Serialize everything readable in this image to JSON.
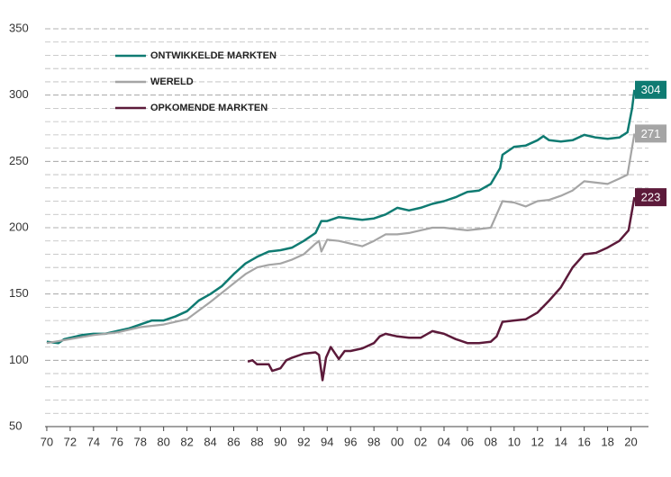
{
  "chart_data": {
    "type": "line",
    "xlim": [
      1969.85,
      2021.5
    ],
    "ylim": [
      50,
      350
    ],
    "yticks": [
      50,
      100,
      150,
      200,
      250,
      300,
      350
    ],
    "minor_yticks": [
      60,
      70,
      80,
      90,
      110,
      120,
      130,
      140,
      160,
      170,
      180,
      190,
      210,
      220,
      230,
      240,
      260,
      270,
      280,
      290,
      310,
      320,
      330,
      340
    ],
    "xticks": [
      {
        "value": 1970,
        "label": "70"
      },
      {
        "value": 1972,
        "label": "72"
      },
      {
        "value": 1974,
        "label": "74"
      },
      {
        "value": 1976,
        "label": "76"
      },
      {
        "value": 1978,
        "label": "78"
      },
      {
        "value": 1980,
        "label": "80"
      },
      {
        "value": 1982,
        "label": "82"
      },
      {
        "value": 1984,
        "label": "84"
      },
      {
        "value": 1986,
        "label": "86"
      },
      {
        "value": 1988,
        "label": "88"
      },
      {
        "value": 1990,
        "label": "90"
      },
      {
        "value": 1992,
        "label": "92"
      },
      {
        "value": 1994,
        "label": "94"
      },
      {
        "value": 1996,
        "label": "96"
      },
      {
        "value": 1998,
        "label": "98"
      },
      {
        "value": 2000,
        "label": "00"
      },
      {
        "value": 2002,
        "label": "02"
      },
      {
        "value": 2004,
        "label": "04"
      },
      {
        "value": 2006,
        "label": "06"
      },
      {
        "value": 2008,
        "label": "08"
      },
      {
        "value": 2010,
        "label": "10"
      },
      {
        "value": 2012,
        "label": "12"
      },
      {
        "value": 2014,
        "label": "14"
      },
      {
        "value": 2016,
        "label": "16"
      },
      {
        "value": 2018,
        "label": "18"
      },
      {
        "value": 2020,
        "label": "20"
      }
    ],
    "grid": true,
    "series": [
      {
        "name": "ONTWIKKELDE MARKTEN",
        "color": "#0f7b72",
        "x": [
          1970,
          1971,
          1971.5,
          1972,
          1973,
          1974,
          1975,
          1976,
          1977,
          1978,
          1979,
          1980,
          1981,
          1982,
          1983,
          1984,
          1985,
          1986,
          1987,
          1988,
          1989,
          1990,
          1991,
          1992,
          1993,
          1993.5,
          1994,
          1995,
          1996,
          1997,
          1998,
          1999,
          2000,
          2001,
          2002,
          2003,
          2004,
          2005,
          2006,
          2007,
          2008,
          2008.8,
          2009,
          2010,
          2011,
          2012,
          2012.5,
          2013,
          2014,
          2015,
          2016,
          2017,
          2018,
          2019,
          2019.7,
          2020.1,
          2020.3
        ],
        "values": [
          114,
          113,
          116,
          117,
          119,
          120,
          120,
          122,
          124,
          127,
          130,
          130,
          133,
          137,
          145,
          150,
          156,
          165,
          173,
          178,
          182,
          183,
          185,
          190,
          196,
          205,
          205,
          208,
          207,
          206,
          207,
          210,
          215,
          213,
          215,
          218,
          220,
          223,
          227,
          228,
          233,
          245,
          255,
          261,
          262,
          266,
          269,
          266,
          265,
          266,
          270,
          268,
          267,
          268,
          272,
          290,
          304
        ]
      },
      {
        "name": "WERELD",
        "color": "#a5a5a5",
        "x": [
          1970,
          1972,
          1974,
          1976,
          1978,
          1980,
          1982,
          1984,
          1986,
          1987,
          1988,
          1989,
          1990,
          1991,
          1992,
          1993,
          1993.3,
          1993.5,
          1994,
          1995,
          1996,
          1997,
          1998,
          1999,
          2000,
          2001,
          2002,
          2003,
          2004,
          2005,
          2006,
          2007,
          2008,
          2008.5,
          2009,
          2010,
          2011,
          2012,
          2013,
          2014,
          2015,
          2016,
          2017,
          2018,
          2019,
          2019.7,
          2020.3
        ],
        "values": [
          113,
          116,
          119,
          121,
          125,
          127,
          131,
          144,
          158,
          165,
          170,
          172,
          173,
          176,
          180,
          188,
          190,
          182,
          191,
          190,
          188,
          186,
          190,
          195,
          195,
          196,
          198,
          200,
          200,
          199,
          198,
          199,
          200,
          210,
          220,
          219,
          216,
          220,
          221,
          224,
          228,
          235,
          234,
          233,
          237,
          240,
          271
        ]
      },
      {
        "name": "OPKOMENDE MARKTEN",
        "color": "#5c1a3a",
        "x": [
          1987.2,
          1987.6,
          1988,
          1989,
          1989.3,
          1990,
          1990.5,
          1991,
          1992,
          1993,
          1993.3,
          1993.6,
          1993.9,
          1994.3,
          1995,
          1995.5,
          1996,
          1997,
          1998,
          1998.5,
          1999,
          2000,
          2001,
          2002,
          2003,
          2004,
          2005,
          2006,
          2007,
          2008,
          2008.5,
          2009,
          2010,
          2011,
          2012,
          2013,
          2014,
          2015,
          2016,
          2017,
          2018,
          2019,
          2019.8,
          2020.3
        ],
        "values": [
          99,
          100,
          97,
          97,
          92,
          94,
          100,
          102,
          105,
          106,
          104,
          85,
          102,
          110,
          101,
          107,
          107,
          109,
          113,
          118,
          120,
          118,
          117,
          117,
          122,
          120,
          116,
          113,
          113,
          114,
          118,
          129,
          130,
          131,
          136,
          145,
          155,
          170,
          180,
          181,
          185,
          190,
          198,
          223
        ]
      }
    ]
  }
}
